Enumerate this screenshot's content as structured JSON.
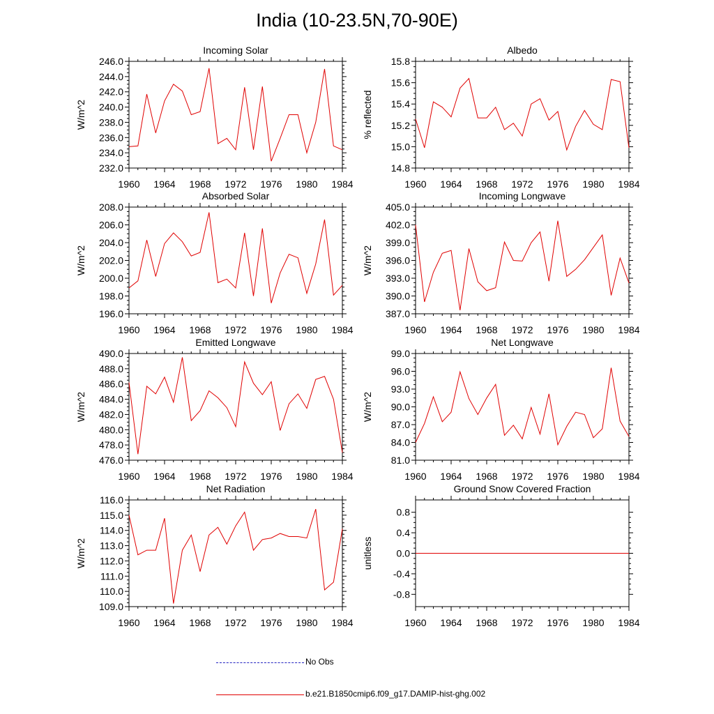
{
  "title": "India (10-23.5N,70-90E)",
  "colors": {
    "model": "#e00000",
    "obs": "#2020c0",
    "axis": "#000000"
  },
  "legend": {
    "obs_label": "No Obs",
    "model_label": "b.e21.B1850cmip6.f09_g17.DAMIP-hist-ghg.002"
  },
  "x_tick_labels": [
    "1960",
    "1964",
    "1968",
    "1972",
    "1976",
    "1980",
    "1984"
  ],
  "chart_data": [
    {
      "type": "line",
      "title": "Incoming Solar",
      "ylabel": "W/m^2",
      "xlim": [
        1960,
        1984
      ],
      "ylim": [
        232,
        246
      ],
      "yticks": [
        "232.0",
        "234.0",
        "236.0",
        "238.0",
        "240.0",
        "242.0",
        "244.0",
        "246.0"
      ],
      "x": [
        1960,
        1961,
        1962,
        1963,
        1964,
        1965,
        1966,
        1967,
        1968,
        1969,
        1970,
        1971,
        1972,
        1973,
        1974,
        1975,
        1976,
        1977,
        1978,
        1979,
        1980,
        1981,
        1982,
        1983,
        1984
      ],
      "values": [
        234.8,
        234.9,
        241.7,
        236.6,
        240.8,
        243.0,
        242.1,
        239.0,
        239.4,
        245.1,
        235.2,
        235.9,
        234.4,
        242.6,
        234.4,
        242.7,
        232.9,
        235.9,
        239.0,
        239.0,
        234.0,
        238.0,
        245.0,
        234.9,
        234.4
      ]
    },
    {
      "type": "line",
      "title": "Albedo",
      "ylabel": "% reflected",
      "xlim": [
        1960,
        1984
      ],
      "ylim": [
        14.8,
        15.8
      ],
      "yticks": [
        "14.8",
        "15.0",
        "15.2",
        "15.4",
        "15.6",
        "15.8"
      ],
      "x": [
        1960,
        1961,
        1962,
        1963,
        1964,
        1965,
        1966,
        1967,
        1968,
        1969,
        1970,
        1971,
        1972,
        1973,
        1974,
        1975,
        1976,
        1977,
        1978,
        1979,
        1980,
        1981,
        1982,
        1983,
        1984
      ],
      "values": [
        15.26,
        14.99,
        15.42,
        15.37,
        15.28,
        15.55,
        15.64,
        15.27,
        15.27,
        15.37,
        15.16,
        15.22,
        15.1,
        15.4,
        15.45,
        15.25,
        15.33,
        14.97,
        15.19,
        15.34,
        15.21,
        15.16,
        15.63,
        15.61,
        14.99
      ]
    },
    {
      "type": "line",
      "title": "Absorbed Solar",
      "ylabel": "W/m^2",
      "xlim": [
        1960,
        1984
      ],
      "ylim": [
        196,
        208
      ],
      "yticks": [
        "196.0",
        "198.0",
        "200.0",
        "202.0",
        "204.0",
        "206.0",
        "208.0"
      ],
      "x": [
        1960,
        1961,
        1962,
        1963,
        1964,
        1965,
        1966,
        1967,
        1968,
        1969,
        1970,
        1971,
        1972,
        1973,
        1974,
        1975,
        1976,
        1977,
        1978,
        1979,
        1980,
        1981,
        1982,
        1983,
        1984
      ],
      "values": [
        198.9,
        199.7,
        204.3,
        200.2,
        203.9,
        205.1,
        204.1,
        202.5,
        202.9,
        207.4,
        199.5,
        199.9,
        198.9,
        205.1,
        198.0,
        205.6,
        197.2,
        200.6,
        202.7,
        202.3,
        198.3,
        201.6,
        206.6,
        198.1,
        199.2
      ]
    },
    {
      "type": "line",
      "title": "Incoming Longwave",
      "ylabel": "W/m^2",
      "xlim": [
        1960,
        1984
      ],
      "ylim": [
        387,
        405
      ],
      "yticks": [
        "387.0",
        "390.0",
        "393.0",
        "396.0",
        "399.0",
        "402.0",
        "405.0"
      ],
      "x": [
        1960,
        1961,
        1962,
        1963,
        1964,
        1965,
        1966,
        1967,
        1968,
        1969,
        1970,
        1971,
        1972,
        1973,
        1974,
        1975,
        1976,
        1977,
        1978,
        1979,
        1980,
        1981,
        1982,
        1983,
        1984
      ],
      "values": [
        402.0,
        389.0,
        394.0,
        397.2,
        397.7,
        387.6,
        398.0,
        392.4,
        390.9,
        391.4,
        399.1,
        396.0,
        395.9,
        399.0,
        400.8,
        392.5,
        402.7,
        393.3,
        394.5,
        396.1,
        398.2,
        400.3,
        390.1,
        396.4,
        392.2
      ]
    },
    {
      "type": "line",
      "title": "Emitted Longwave",
      "ylabel": "W/m^2",
      "xlim": [
        1960,
        1984
      ],
      "ylim": [
        476,
        490
      ],
      "yticks": [
        "476.0",
        "478.0",
        "480.0",
        "482.0",
        "484.0",
        "486.0",
        "488.0",
        "490.0"
      ],
      "x": [
        1960,
        1961,
        1962,
        1963,
        1964,
        1965,
        1966,
        1967,
        1968,
        1969,
        1970,
        1971,
        1972,
        1973,
        1974,
        1975,
        1976,
        1977,
        1978,
        1979,
        1980,
        1981,
        1982,
        1983,
        1984
      ],
      "values": [
        486.2,
        476.8,
        485.7,
        484.7,
        486.9,
        483.6,
        489.5,
        481.2,
        482.5,
        485.1,
        484.2,
        482.9,
        480.4,
        488.9,
        486.1,
        484.6,
        486.3,
        479.9,
        483.4,
        484.7,
        482.8,
        486.6,
        487.0,
        484.0,
        477.0
      ]
    },
    {
      "type": "line",
      "title": "Net Longwave",
      "ylabel": "W/m^2",
      "xlim": [
        1960,
        1984
      ],
      "ylim": [
        81,
        99
      ],
      "yticks": [
        "81.0",
        "84.0",
        "87.0",
        "90.0",
        "93.0",
        "96.0",
        "99.0"
      ],
      "x": [
        1960,
        1961,
        1962,
        1963,
        1964,
        1965,
        1966,
        1967,
        1968,
        1969,
        1970,
        1971,
        1972,
        1973,
        1974,
        1975,
        1976,
        1977,
        1978,
        1979,
        1980,
        1981,
        1982,
        1983,
        1984
      ],
      "values": [
        84.0,
        87.2,
        91.7,
        87.5,
        89.1,
        95.9,
        91.4,
        88.7,
        91.5,
        93.8,
        85.2,
        86.9,
        84.6,
        89.9,
        85.4,
        92.2,
        83.6,
        86.7,
        89.1,
        88.7,
        84.8,
        86.3,
        96.6,
        87.6,
        85.0
      ]
    },
    {
      "type": "line",
      "title": "Net Radiation",
      "ylabel": "W/m^2",
      "xlim": [
        1960,
        1984
      ],
      "ylim": [
        109,
        116
      ],
      "yticks": [
        "109.0",
        "110.0",
        "111.0",
        "112.0",
        "113.0",
        "114.0",
        "115.0",
        "116.0"
      ],
      "x": [
        1960,
        1961,
        1962,
        1963,
        1964,
        1965,
        1966,
        1967,
        1968,
        1969,
        1970,
        1971,
        1972,
        1973,
        1974,
        1975,
        1976,
        1977,
        1978,
        1979,
        1980,
        1981,
        1982,
        1983,
        1984
      ],
      "values": [
        115.0,
        112.4,
        112.7,
        112.7,
        114.8,
        109.2,
        112.7,
        113.7,
        111.3,
        113.7,
        114.2,
        113.1,
        114.3,
        115.2,
        112.7,
        113.4,
        113.5,
        113.8,
        113.6,
        113.6,
        113.5,
        115.4,
        110.1,
        110.6,
        114.1
      ]
    },
    {
      "type": "line",
      "title": "Ground Snow Covered Fraction",
      "ylabel": "unitless",
      "xlim": [
        1960,
        1984
      ],
      "ylim": [
        -1.04,
        1.04
      ],
      "yticks": [
        "-0.8",
        "-0.4",
        "0.0",
        "0.4",
        "0.8"
      ],
      "ytick_values": [
        -0.8,
        -0.4,
        0.0,
        0.4,
        0.8
      ],
      "x": [
        1960,
        1961,
        1962,
        1963,
        1964,
        1965,
        1966,
        1967,
        1968,
        1969,
        1970,
        1971,
        1972,
        1973,
        1974,
        1975,
        1976,
        1977,
        1978,
        1979,
        1980,
        1981,
        1982,
        1983,
        1984
      ],
      "values": [
        0,
        0,
        0,
        0,
        0,
        0,
        0,
        0,
        0,
        0,
        0,
        0,
        0,
        0,
        0,
        0,
        0,
        0,
        0,
        0,
        0,
        0,
        0,
        0,
        0
      ]
    }
  ]
}
